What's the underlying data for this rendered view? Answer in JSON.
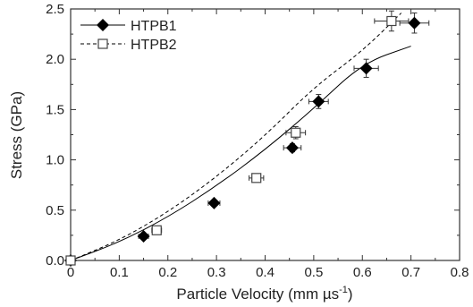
{
  "chart_data": {
    "type": "scatter",
    "xlabel": "Particle Velocity (mm µs",
    "xlabel_sup": "-1",
    "xlabel_close": ")",
    "ylabel": "Stress (GPa)",
    "xlim": [
      0,
      0.8
    ],
    "ylim": [
      0,
      2.5
    ],
    "xticks": [
      0,
      0.1,
      0.2,
      0.3,
      0.4,
      0.5,
      0.6,
      0.7,
      0.8
    ],
    "yticks": [
      0,
      0.5,
      1.0,
      1.5,
      2.0,
      2.5
    ],
    "xtick_labels": [
      "0",
      "0.1",
      "0.2",
      "0.3",
      "0.4",
      "0.5",
      "0.6",
      "0.7",
      "0.8"
    ],
    "ytick_labels": [
      "0.0",
      "0.5",
      "1.0",
      "1.5",
      "2.0",
      "2.5"
    ],
    "grid": false,
    "legend_position": "top-left",
    "series": [
      {
        "name": "HTPB1",
        "marker": "filled-diamond",
        "line_style": "solid",
        "color": "#000000",
        "points": [
          {
            "x": 0.0,
            "y": 0.0
          },
          {
            "x": 0.15,
            "y": 0.24,
            "xerr": 0.01,
            "yerr": 0.02
          },
          {
            "x": 0.295,
            "y": 0.57,
            "xerr": 0.012,
            "yerr": 0.03
          },
          {
            "x": 0.456,
            "y": 1.12,
            "xerr": 0.018,
            "yerr": 0.04
          },
          {
            "x": 0.51,
            "y": 1.58,
            "xerr": 0.02,
            "yerr": 0.07
          },
          {
            "x": 0.608,
            "y": 1.91,
            "xerr": 0.025,
            "yerr": 0.09
          },
          {
            "x": 0.707,
            "y": 2.36,
            "xerr": 0.03,
            "yerr": 0.1
          }
        ],
        "fit_curve": [
          {
            "x": 0.0,
            "y": 0.0
          },
          {
            "x": 0.1,
            "y": 0.18
          },
          {
            "x": 0.2,
            "y": 0.43
          },
          {
            "x": 0.3,
            "y": 0.74
          },
          {
            "x": 0.4,
            "y": 1.1
          },
          {
            "x": 0.5,
            "y": 1.51
          },
          {
            "x": 0.6,
            "y": 1.96
          },
          {
            "x": 0.7,
            "y": 2.13
          }
        ]
      },
      {
        "name": "HTPB2",
        "marker": "open-square",
        "line_style": "dashed",
        "color": "#000000",
        "points": [
          {
            "x": 0.0,
            "y": 0.0
          },
          {
            "x": 0.177,
            "y": 0.3,
            "xerr": 0.01,
            "yerr": 0.02
          },
          {
            "x": 0.382,
            "y": 0.82,
            "xerr": 0.015,
            "yerr": 0.03
          },
          {
            "x": 0.463,
            "y": 1.27,
            "xerr": 0.02,
            "yerr": 0.06
          },
          {
            "x": 0.66,
            "y": 2.38,
            "xerr": 0.035,
            "yerr": 0.1
          }
        ],
        "fit_curve": [
          {
            "x": 0.0,
            "y": 0.0
          },
          {
            "x": 0.1,
            "y": 0.2
          },
          {
            "x": 0.2,
            "y": 0.48
          },
          {
            "x": 0.3,
            "y": 0.83
          },
          {
            "x": 0.4,
            "y": 1.24
          },
          {
            "x": 0.5,
            "y": 1.72
          },
          {
            "x": 0.6,
            "y": 2.08
          },
          {
            "x": 0.68,
            "y": 2.46
          }
        ]
      }
    ]
  }
}
